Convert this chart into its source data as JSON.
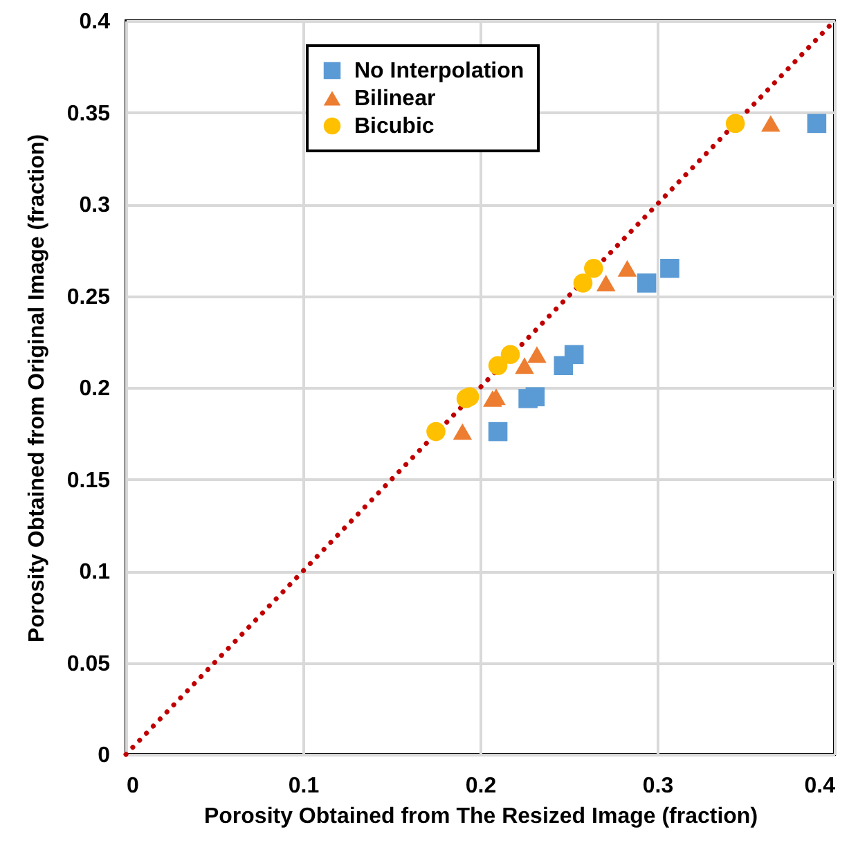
{
  "chart_data": {
    "type": "scatter",
    "xlabel": "Porosity Obtained from The Resized Image (fraction)",
    "ylabel": "Porosity Obtained from Original Image (fraction)",
    "xlim": [
      0,
      0.4
    ],
    "xticks": [
      0,
      0.1,
      0.2,
      0.3,
      0.4
    ],
    "ylim": [
      0,
      0.4
    ],
    "yticks": [
      0,
      0.05,
      0.1,
      0.15,
      0.2,
      0.25,
      0.3,
      0.35,
      0.4
    ],
    "grid": true,
    "legend": "top",
    "series": [
      {
        "type": "line",
        "color": "#c00000",
        "line_style": "dotted",
        "x": [
          0,
          0.4
        ],
        "values": [
          0,
          0.4
        ]
      },
      {
        "name": "No Interpolation",
        "color": "#5b9bd5",
        "marker": "square",
        "x": [
          0.21,
          0.227,
          0.231,
          0.247,
          0.253,
          0.294,
          0.307,
          0.39
        ],
        "values": [
          0.176,
          0.194,
          0.195,
          0.212,
          0.218,
          0.257,
          0.265,
          0.344
        ]
      },
      {
        "name": "Bilinear",
        "color": "#ed7d31",
        "marker": "triangle",
        "x": [
          0.19,
          0.207,
          0.209,
          0.225,
          0.232,
          0.271,
          0.283,
          0.364
        ],
        "values": [
          0.176,
          0.194,
          0.195,
          0.212,
          0.218,
          0.257,
          0.265,
          0.344
        ]
      },
      {
        "name": "Bicubic",
        "color": "#ffc000",
        "marker": "circle",
        "x": [
          0.175,
          0.192,
          0.194,
          0.21,
          0.217,
          0.258,
          0.264,
          0.344
        ],
        "values": [
          0.176,
          0.194,
          0.195,
          0.212,
          0.218,
          0.257,
          0.265,
          0.344
        ]
      }
    ]
  }
}
